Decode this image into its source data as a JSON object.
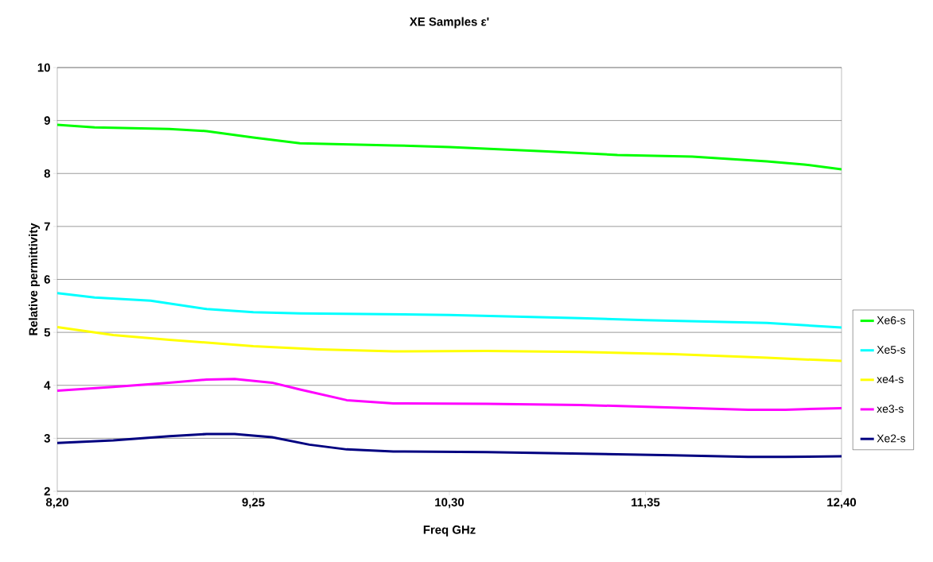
{
  "chart_data": {
    "type": "line",
    "title": "XE Samples ε'",
    "xlabel": "Freq GHz",
    "ylabel": "Relative permittivity",
    "xlim": [
      8.2,
      12.4
    ],
    "xticks": [
      {
        "value": 8.2,
        "label": "8,20"
      },
      {
        "value": 9.25,
        "label": "9,25"
      },
      {
        "value": 10.3,
        "label": "10,30"
      },
      {
        "value": 11.35,
        "label": "11,35"
      },
      {
        "value": 12.4,
        "label": "12,40"
      }
    ],
    "ylim": [
      2,
      10
    ],
    "yticks": [
      2,
      3,
      4,
      5,
      6,
      7,
      8,
      9,
      10
    ],
    "grid": "y",
    "legend": "right",
    "marker": "none",
    "line_style": "solid",
    "series": [
      {
        "name": "Xe6-s",
        "color": "#00ff00",
        "x": [
          8.2,
          8.4,
          8.8,
          9.0,
          9.25,
          9.5,
          10.0,
          10.3,
          10.8,
          11.2,
          11.6,
          12.0,
          12.2,
          12.4
        ],
        "values": [
          8.92,
          8.87,
          8.84,
          8.8,
          8.68,
          8.57,
          8.53,
          8.5,
          8.42,
          8.35,
          8.32,
          8.23,
          8.17,
          8.08
        ]
      },
      {
        "name": "Xe5-s",
        "color": "#00ffff",
        "x": [
          8.2,
          8.4,
          8.7,
          9.0,
          9.25,
          9.5,
          10.3,
          11.0,
          11.35,
          12.0,
          12.4
        ],
        "values": [
          5.74,
          5.66,
          5.6,
          5.44,
          5.38,
          5.36,
          5.33,
          5.27,
          5.23,
          5.18,
          5.09
        ]
      },
      {
        "name": "xe4-s",
        "color": "#ffff00",
        "x": [
          8.2,
          8.5,
          8.8,
          9.25,
          9.6,
          10.0,
          10.5,
          11.0,
          11.5,
          12.0,
          12.4
        ],
        "values": [
          5.1,
          4.95,
          4.86,
          4.74,
          4.68,
          4.64,
          4.65,
          4.63,
          4.59,
          4.52,
          4.46
        ]
      },
      {
        "name": "xe3-s",
        "color": "#ff00ff",
        "x": [
          8.2,
          8.5,
          8.8,
          9.0,
          9.15,
          9.35,
          9.5,
          9.75,
          10.0,
          10.5,
          11.0,
          11.5,
          11.9,
          12.1,
          12.4
        ],
        "values": [
          3.9,
          3.97,
          4.05,
          4.11,
          4.12,
          4.05,
          3.92,
          3.72,
          3.66,
          3.65,
          3.63,
          3.58,
          3.54,
          3.54,
          3.57
        ]
      },
      {
        "name": "Xe2-s",
        "color": "#000080",
        "x": [
          8.2,
          8.5,
          8.8,
          9.0,
          9.15,
          9.35,
          9.55,
          9.75,
          10.0,
          10.5,
          11.0,
          11.5,
          11.9,
          12.1,
          12.4
        ],
        "values": [
          2.91,
          2.96,
          3.04,
          3.08,
          3.08,
          3.02,
          2.88,
          2.79,
          2.75,
          2.74,
          2.71,
          2.68,
          2.65,
          2.65,
          2.66
        ]
      }
    ]
  }
}
